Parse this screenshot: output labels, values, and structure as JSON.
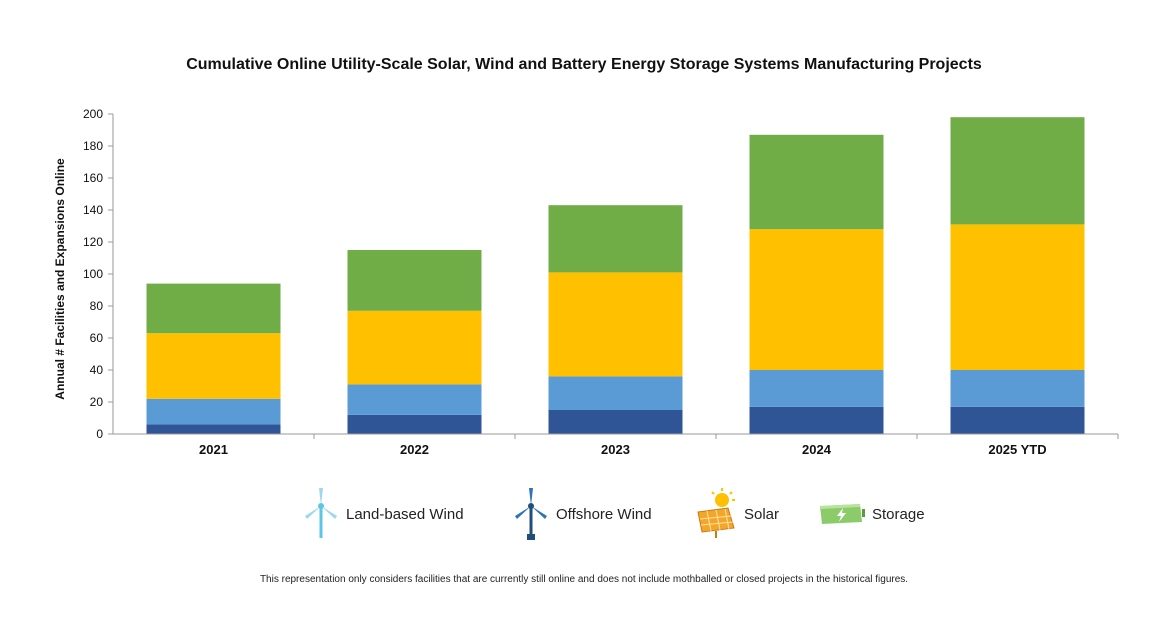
{
  "chart_data": {
    "type": "bar",
    "stacked": true,
    "title": "Cumulative Online Utility-Scale Solar, Wind and Battery Energy Storage Systems Manufacturing Projects",
    "ylabel": "Annual # Facilities and Expansions Online",
    "xlabel": "",
    "ylim": [
      0,
      200
    ],
    "yticks": [
      0,
      20,
      40,
      60,
      80,
      100,
      120,
      140,
      160,
      180,
      200
    ],
    "categories": [
      "2021",
      "2022",
      "2023",
      "2024",
      "2025 YTD"
    ],
    "series": [
      {
        "name": "Offshore Wind",
        "color": "#2F5597",
        "values": [
          6,
          12,
          15,
          17,
          17
        ]
      },
      {
        "name": "Land-based Wind",
        "color": "#5B9BD5",
        "values": [
          16,
          19,
          21,
          23,
          23
        ]
      },
      {
        "name": "Solar",
        "color": "#FFC000",
        "values": [
          41,
          46,
          65,
          88,
          91
        ]
      },
      {
        "name": "Storage",
        "color": "#70AD47",
        "values": [
          31,
          38,
          42,
          59,
          67
        ]
      }
    ],
    "grid": false,
    "legend_position": "bottom"
  },
  "legend": {
    "items": [
      {
        "label": "Land-based Wind",
        "icon": "land-wind-turbine-icon"
      },
      {
        "label": "Offshore Wind",
        "icon": "offshore-wind-turbine-icon"
      },
      {
        "label": "Solar",
        "icon": "solar-panel-icon"
      },
      {
        "label": "Storage",
        "icon": "battery-icon"
      }
    ]
  },
  "footnote": "This representation only considers facilities that are currently still online and does not include mothballed or closed projects in the historical figures."
}
